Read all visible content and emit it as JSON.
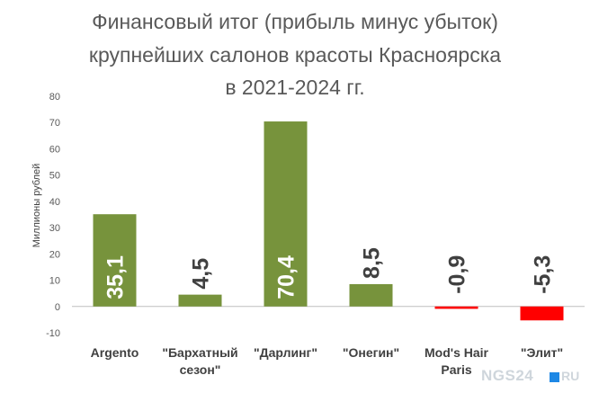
{
  "chart_data": {
    "type": "bar",
    "title_lines": [
      "Финансовый итог (прибыль минус убыток)",
      "крупнейших салонов красоты Красноярска",
      "в 2021-2024 гг."
    ],
    "ylabel": "Миллионы рублей",
    "xlabel": "",
    "ylim": [
      -10,
      80
    ],
    "yticks": [
      -10,
      0,
      10,
      20,
      30,
      40,
      50,
      60,
      70,
      80
    ],
    "categories": [
      [
        "Argento"
      ],
      [
        "\"Бархатный",
        "сезон\""
      ],
      [
        "\"Дарлинг\""
      ],
      [
        "\"Онегин\""
      ],
      [
        "Mod's Hair",
        "Paris"
      ],
      [
        "\"Элит\""
      ]
    ],
    "values": [
      35.1,
      4.5,
      70.4,
      8.5,
      -0.9,
      -5.3
    ],
    "value_labels": [
      "35,1",
      "4,5",
      "70,4",
      "8,5",
      "-0,9",
      "-5,3"
    ],
    "colors": {
      "positive": "#77933c",
      "negative": "#ff0000",
      "label_inside": "#ffffff",
      "label_outside": "#404040",
      "axis": "#bfbfbf",
      "tick_text": "#595959"
    },
    "grid": false
  },
  "watermark": {
    "text": "NGS24",
    "suffix": "RU",
    "square_color": "#1e88e5"
  }
}
